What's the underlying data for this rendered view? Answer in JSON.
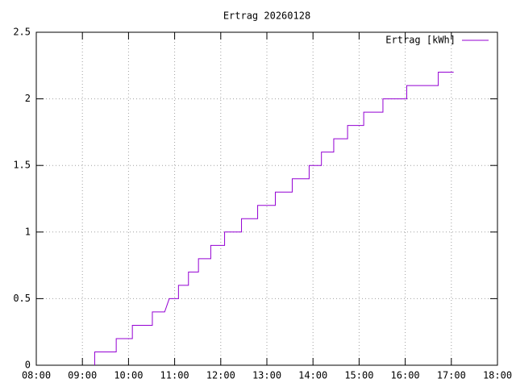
{
  "chart_data": {
    "type": "line",
    "title": "Ertrag 20260128",
    "x": [
      "09:16",
      "09:16",
      "09:44",
      "09:44",
      "10:05",
      "10:05",
      "10:31",
      "10:31",
      "10:47",
      "10:53",
      "11:05",
      "11:05",
      "11:18",
      "11:18",
      "11:31",
      "11:31",
      "11:47",
      "11:47",
      "12:05",
      "12:05",
      "12:27",
      "12:27",
      "12:48",
      "12:48",
      "13:11",
      "13:11",
      "13:33",
      "13:33",
      "13:55",
      "13:55",
      "14:11",
      "14:11",
      "14:27",
      "14:27",
      "14:45",
      "14:45",
      "15:06",
      "15:06",
      "15:31",
      "15:31",
      "16:02",
      "16:02",
      "16:43",
      "16:43",
      "17:03"
    ],
    "series": [
      {
        "name": "Ertrag [kWh]",
        "color": "#9400d3",
        "values": [
          0,
          0.1,
          0.1,
          0.2,
          0.2,
          0.3,
          0.3,
          0.4,
          0.4,
          0.5,
          0.5,
          0.6,
          0.6,
          0.7,
          0.7,
          0.8,
          0.8,
          0.9,
          0.9,
          1,
          1,
          1.1,
          1.1,
          1.2,
          1.2,
          1.3,
          1.3,
          1.4,
          1.4,
          1.5,
          1.5,
          1.6,
          1.6,
          1.7,
          1.7,
          1.8,
          1.8,
          1.9,
          1.9,
          2,
          2,
          2.1,
          2.1,
          2.2,
          2.2
        ]
      }
    ],
    "xlim": [
      "08:00",
      "18:00"
    ],
    "xticks": [
      "08:00",
      "09:00",
      "10:00",
      "11:00",
      "12:00",
      "13:00",
      "14:00",
      "15:00",
      "16:00",
      "17:00",
      "18:00"
    ],
    "ylim": [
      0,
      2.5
    ],
    "yticks": [
      0,
      0.5,
      1,
      1.5,
      2,
      2.5
    ],
    "grid": true,
    "legend": "top-right"
  }
}
